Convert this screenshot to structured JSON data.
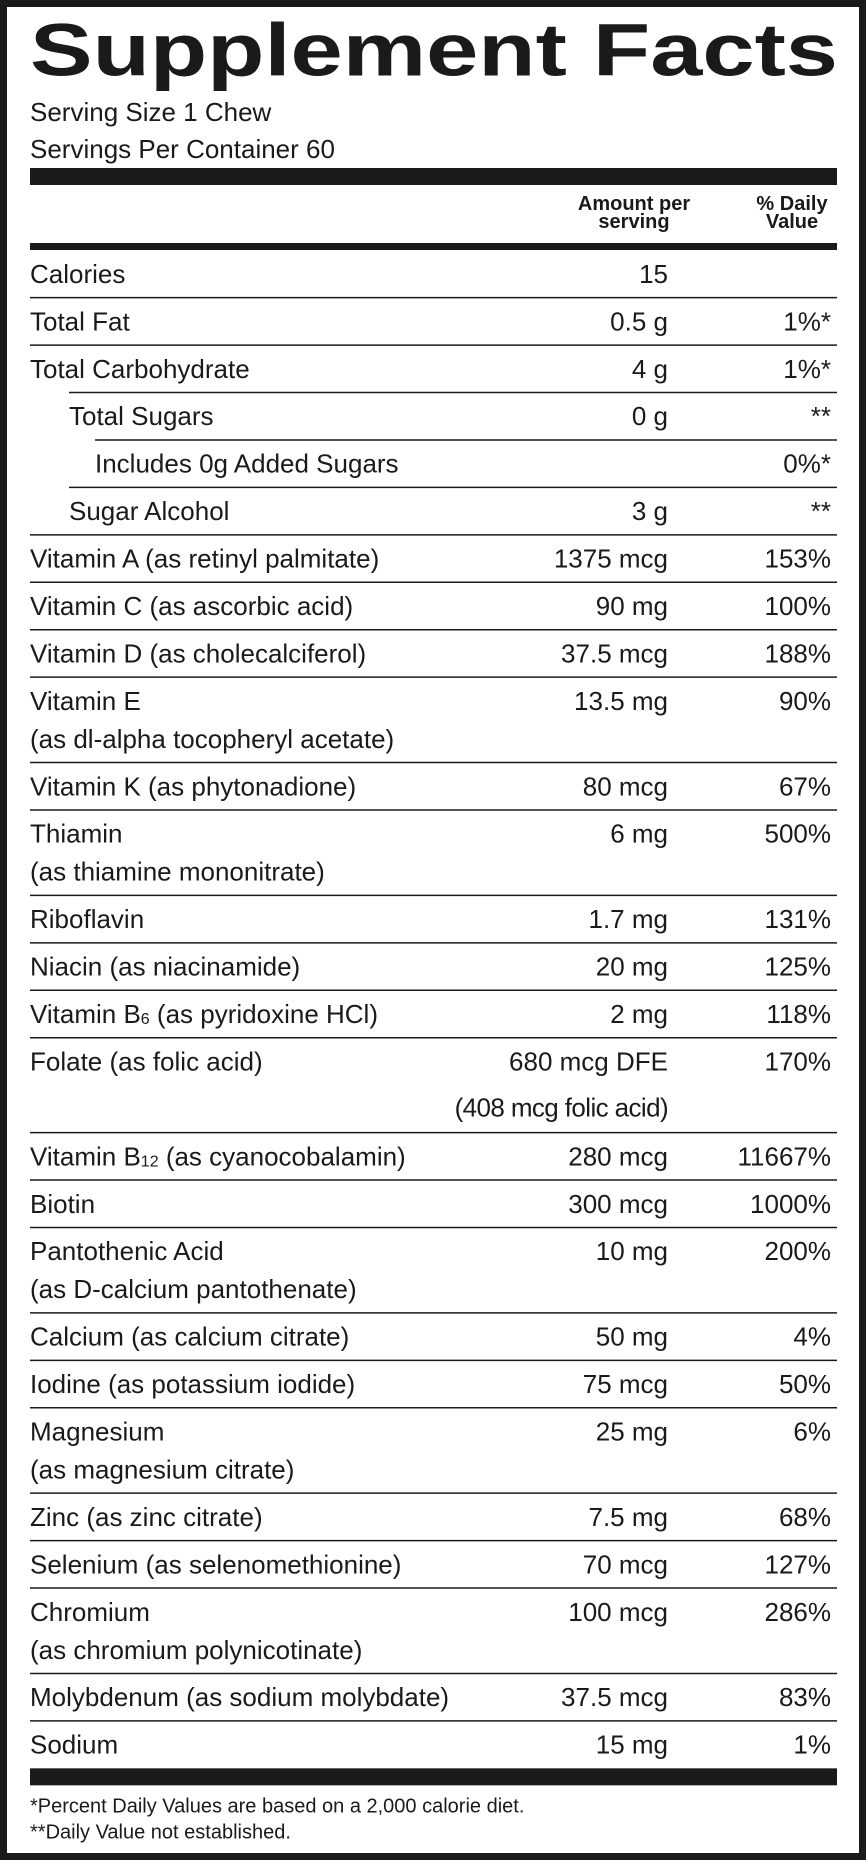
{
  "header": {
    "title": "Supplement Facts",
    "serving_size": "Serving Size 1 Chew",
    "servings_per_container": "Servings Per Container 60"
  },
  "table": {
    "columns": [
      {
        "lines": [
          "Amount per",
          "serving"
        ]
      },
      {
        "lines": [
          "% Daily",
          "Value"
        ]
      }
    ],
    "rows": [
      {
        "name": "Calories",
        "amount": "15"
      },
      {
        "name": "Total Fat",
        "amount": "0.5 g",
        "daily_value": "1%*"
      },
      {
        "name": "Total Carbohydrate",
        "amount": "4 g",
        "daily_value": "1%*",
        "children": [
          {
            "name": "Total Sugars",
            "amount": "0 g",
            "daily_value": "**",
            "children": [
              {
                "name": "Includes 0g Added Sugars",
                "daily_value": "0%*"
              }
            ]
          },
          {
            "name": "Sugar Alcohol",
            "amount": "3 g",
            "daily_value": "**"
          }
        ]
      },
      {
        "name": "Vitamin A (as retinyl palmitate)",
        "amount": "1375 mcg",
        "daily_value": "153%"
      },
      {
        "name": "Vitamin C (as ascorbic acid)",
        "amount": "90 mg",
        "daily_value": "100%"
      },
      {
        "name": "Vitamin D (as cholecalciferol)",
        "amount": "37.5 mcg",
        "daily_value": "188%"
      },
      {
        "name": "Vitamin E",
        "detail": "(as dl-alpha tocopheryl acetate)",
        "amount": "13.5 mg",
        "daily_value": "90%"
      },
      {
        "name": "Vitamin K (as phytonadione)",
        "amount": "80 mcg",
        "daily_value": "67%"
      },
      {
        "name": "Thiamin",
        "detail": "(as thiamine mononitrate)",
        "amount": "6 mg",
        "daily_value": "500%"
      },
      {
        "name": "Riboflavin",
        "amount": "1.7 mg",
        "daily_value": "131%"
      },
      {
        "name": "Niacin (as niacinamide)",
        "amount": "20 mg",
        "daily_value": "125%"
      },
      {
        "name": "Vitamin B",
        "subscript": "6",
        "name_rest": " (as pyridoxine HCl)",
        "amount": "2 mg",
        "daily_value": "118%"
      },
      {
        "name": "Folate (as folic acid)",
        "amount": "680 mcg DFE",
        "amount_detail": "(408 mcg folic acid)",
        "daily_value": "170%"
      },
      {
        "name": "Vitamin B",
        "subscript": "12",
        "name_rest": " (as cyanocobalamin)",
        "amount": "280 mcg",
        "daily_value": "11667%"
      },
      {
        "name": "Biotin",
        "amount": "300 mcg",
        "daily_value": "1000%"
      },
      {
        "name": "Pantothenic Acid",
        "detail": "(as D-calcium pantothenate)",
        "amount": "10 mg",
        "daily_value": "200%"
      },
      {
        "name": "Calcium (as calcium citrate)",
        "amount": "50 mg",
        "daily_value": "4%"
      },
      {
        "name": "Iodine (as potassium iodide)",
        "amount": "75 mcg",
        "daily_value": "50%"
      },
      {
        "name": "Magnesium",
        "detail": "(as magnesium citrate)",
        "amount": "25 mg",
        "daily_value": "6%"
      },
      {
        "name": "Zinc (as zinc citrate)",
        "amount": "7.5 mg",
        "daily_value": "68%"
      },
      {
        "name": "Selenium (as selenomethionine)",
        "amount": "70 mcg",
        "daily_value": "127%"
      },
      {
        "name": "Chromium",
        "detail": "(as chromium polynicotinate)",
        "amount": "100 mcg",
        "daily_value": "286%"
      },
      {
        "name": "Molybdenum (as sodium molybdate)",
        "amount": "37.5 mcg",
        "daily_value": "83%"
      },
      {
        "name": "Sodium",
        "amount": "15 mg",
        "daily_value": "1%"
      }
    ]
  },
  "footnotes": [
    "*Percent Daily Values are based on a 2,000 calorie diet.",
    "**Daily Value not established."
  ]
}
